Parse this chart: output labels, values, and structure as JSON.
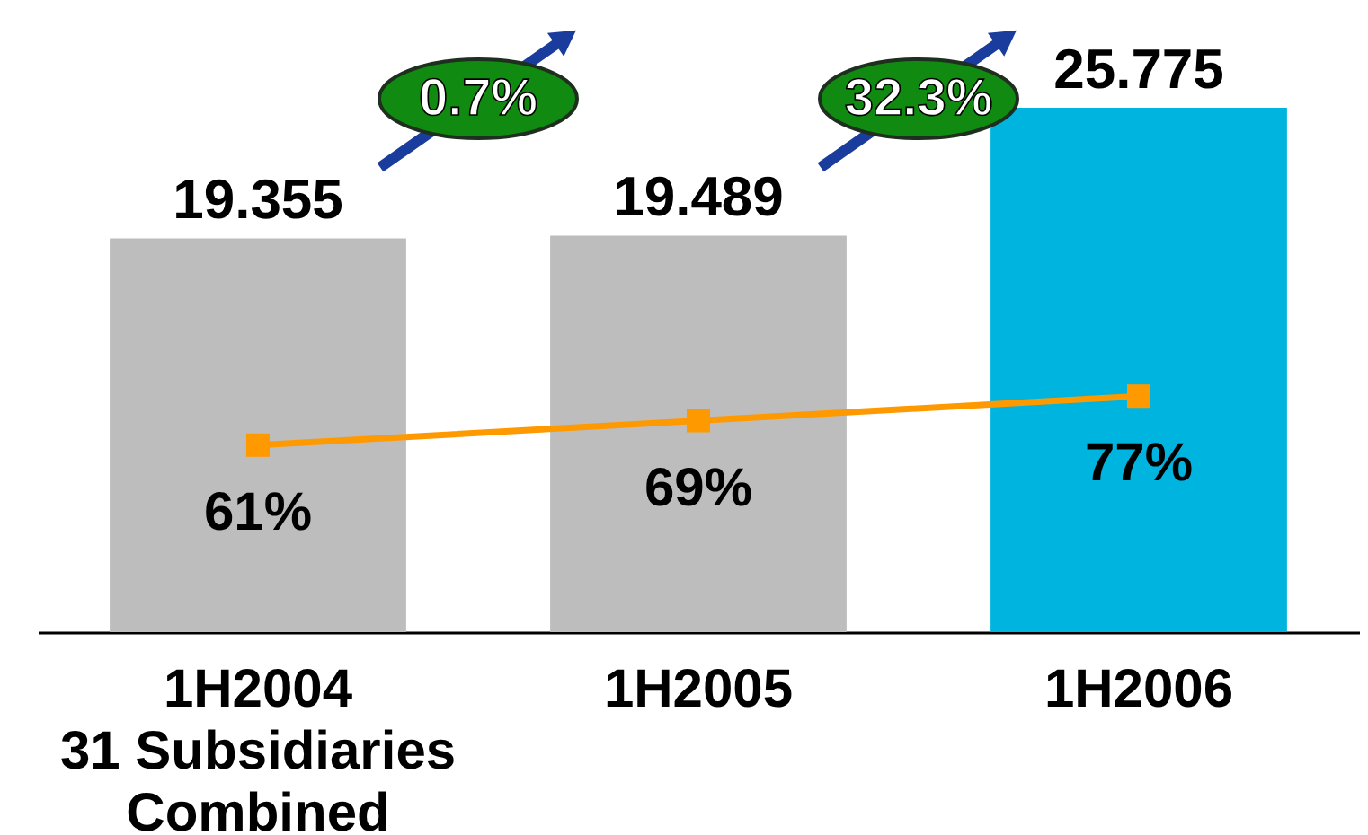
{
  "chart_data": {
    "type": "bar",
    "categories": [
      "1H2004\n31 Subsidiaries\nCombined",
      "1H2005",
      "1H2006"
    ],
    "series": [
      {
        "colors": [
          "#bdbdbd",
          "#bdbdbd",
          "#00b4e0"
        ],
        "values": [
          19.355,
          19.489,
          25.775
        ],
        "value_labels": [
          "19.355",
          "19.489",
          "25.775"
        ]
      },
      {
        "type": "line",
        "axis": "y2",
        "color": "#ff9900",
        "values": [
          61,
          69,
          77
        ],
        "value_labels": [
          "61%",
          "69%",
          "77%"
        ]
      }
    ],
    "marker": "square",
    "tick_labels": "x",
    "annotations": [
      "0.7%",
      "32.3%"
    ]
  }
}
